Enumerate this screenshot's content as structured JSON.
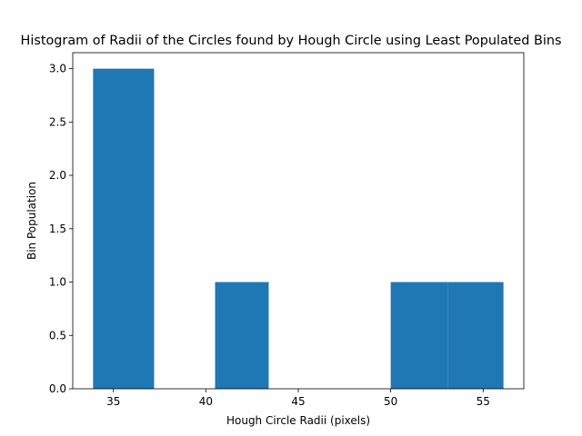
{
  "chart_data": {
    "type": "bar",
    "title": "Histogram of Radii of the Circles found by Hough Circle using Least Populated Bins",
    "xlabel": "Hough Circle Radii (pixels)",
    "ylabel": "Bin Population",
    "xlim": [
      32.8,
      57.2
    ],
    "ylim": [
      0,
      3.15
    ],
    "x_ticks": [
      35,
      40,
      45,
      50,
      55
    ],
    "y_ticks": [
      0.0,
      0.5,
      1.0,
      1.5,
      2.0,
      2.5,
      3.0
    ],
    "bins": [
      {
        "start": 33.9,
        "end": 37.2,
        "value": 3
      },
      {
        "start": 37.2,
        "end": 40.5,
        "value": 0
      },
      {
        "start": 40.5,
        "end": 43.4,
        "value": 1
      },
      {
        "start": 43.4,
        "end": 46.7,
        "value": 0
      },
      {
        "start": 46.7,
        "end": 50.0,
        "value": 0
      },
      {
        "start": 50.0,
        "end": 53.1,
        "value": 1
      },
      {
        "start": 53.1,
        "end": 56.1,
        "value": 1
      }
    ],
    "bar_color": "#1f77b4",
    "grid": false,
    "legend": "none"
  }
}
